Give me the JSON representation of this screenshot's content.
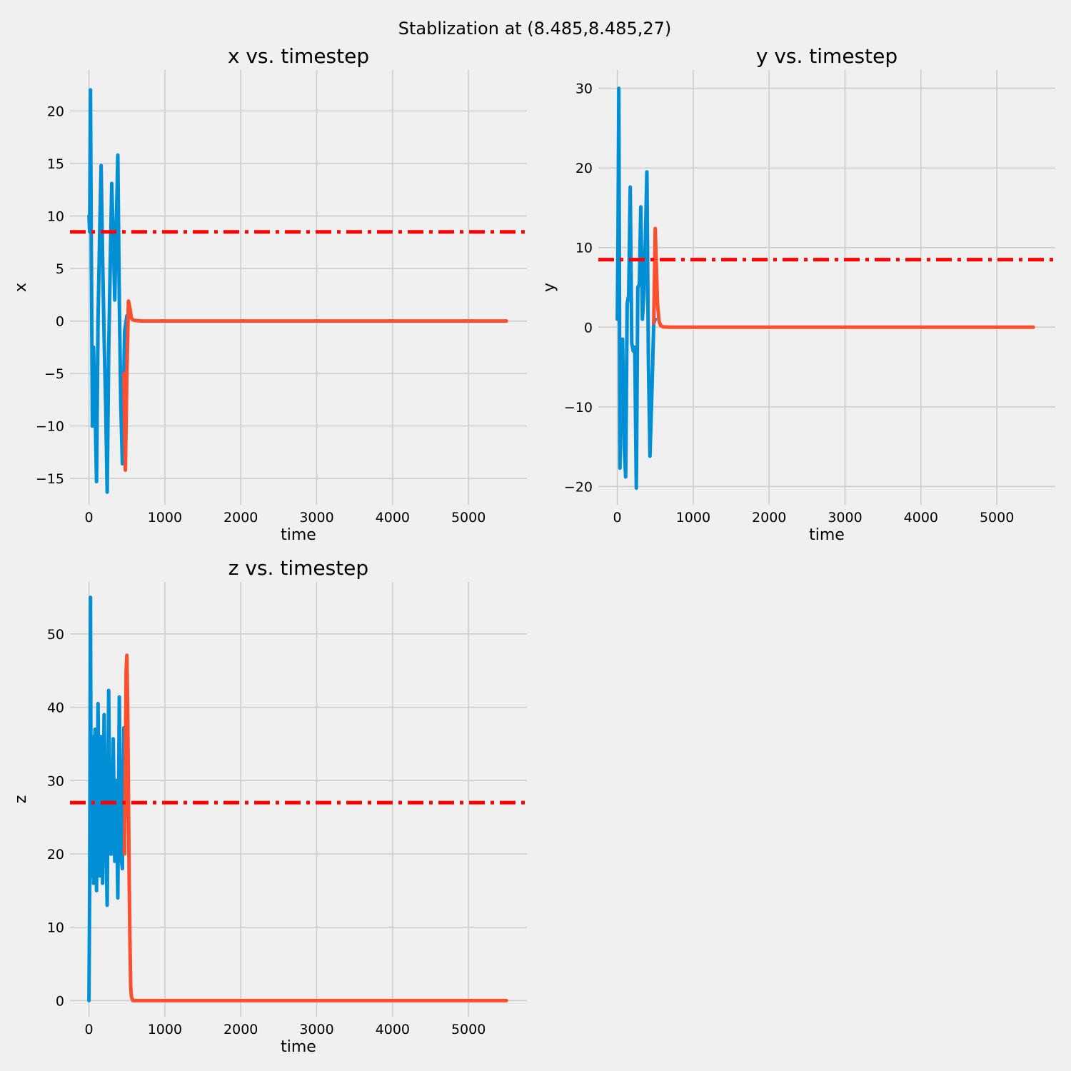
{
  "figure": {
    "suptitle": "Stablization at (8.485,8.485,27)",
    "background": "#f0f0f0",
    "grid_color": "#cbcbcb",
    "series_colors": {
      "trajectory": "#008fd5",
      "controlled": "#fc4f30",
      "target_line": "#ff0000"
    }
  },
  "chart_data": [
    {
      "type": "line",
      "title": "x vs. timestep",
      "xlabel": "time",
      "ylabel": "x",
      "xlim": [
        -250,
        5770
      ],
      "ylim": [
        -17.5,
        23.9
      ],
      "xticks": [
        0,
        1000,
        2000,
        3000,
        4000,
        5000
      ],
      "xtick_labels": [
        "0",
        "1000",
        "2000",
        "3000",
        "4000",
        "5000"
      ],
      "yticks": [
        -15,
        -10,
        -5,
        0,
        5,
        10,
        15,
        20
      ],
      "ytick_labels": [
        "−15",
        "−10",
        "−5",
        "0",
        "5",
        "10",
        "15",
        "20"
      ],
      "grid": true,
      "hline": {
        "y": 8.485,
        "style": "dash-dot"
      },
      "series": [
        {
          "role": "trajectory",
          "x": [
            0,
            10,
            20,
            30,
            45,
            60,
            80,
            100,
            120,
            140,
            160,
            180,
            200,
            220,
            240,
            260,
            280,
            300,
            320,
            340,
            360,
            380,
            400,
            420,
            440,
            460,
            470,
            480,
            500
          ],
          "y": [
            10,
            8.5,
            22,
            8,
            -10,
            -2.5,
            -8,
            -15.3,
            0,
            8,
            14.8,
            6,
            -1.5,
            -8,
            -16.3,
            -3,
            5,
            13.1,
            8,
            2,
            9,
            15.8,
            2,
            -8,
            -13.6,
            -5,
            -1,
            -0.5,
            0.5
          ]
        },
        {
          "role": "controlled",
          "x": [
            460,
            480,
            500,
            520,
            540,
            560,
            580,
            600,
            700,
            1000,
            2000,
            3000,
            4000,
            5000,
            5500
          ],
          "y": [
            -5,
            -14.2,
            -5,
            1.9,
            1.2,
            0.3,
            0.1,
            0.05,
            0,
            0,
            0,
            0,
            0,
            0,
            0
          ]
        }
      ]
    },
    {
      "type": "line",
      "title": "y vs. timestep",
      "xlabel": "time",
      "ylabel": "y",
      "xlim": [
        -250,
        5770
      ],
      "ylim": [
        -22.3,
        32.3
      ],
      "xticks": [
        0,
        1000,
        2000,
        3000,
        4000,
        5000
      ],
      "xtick_labels": [
        "0",
        "1000",
        "2000",
        "3000",
        "4000",
        "5000"
      ],
      "yticks": [
        -20,
        -10,
        0,
        10,
        20,
        30
      ],
      "ytick_labels": [
        "−20",
        "−10",
        "0",
        "10",
        "20",
        "30"
      ],
      "grid": true,
      "hline": {
        "y": 8.485,
        "style": "dash-dot"
      },
      "series": [
        {
          "role": "trajectory",
          "x": [
            0,
            10,
            20,
            35,
            50,
            70,
            90,
            110,
            130,
            150,
            170,
            190,
            210,
            230,
            250,
            270,
            290,
            310,
            330,
            350,
            370,
            390,
            410,
            430,
            450,
            465,
            480,
            500
          ],
          "y": [
            1,
            12,
            30,
            -17.7,
            -2,
            -1.5,
            -15,
            -18.8,
            3,
            4,
            17.6,
            -2,
            -3,
            -2.5,
            -20.2,
            5,
            5.4,
            15.1,
            1,
            4,
            11,
            19.5,
            -4.5,
            -16.2,
            -10,
            -5,
            0.5,
            1
          ]
        },
        {
          "role": "controlled",
          "x": [
            480,
            500,
            510,
            530,
            550,
            570,
            600,
            700,
            1000,
            2000,
            3000,
            4000,
            5000,
            5480
          ],
          "y": [
            0.5,
            12.4,
            9,
            3,
            0.8,
            0.2,
            0.05,
            0,
            0,
            0,
            0,
            0,
            0,
            0
          ]
        }
      ]
    },
    {
      "type": "line",
      "title": "z vs. timestep",
      "xlabel": "time",
      "ylabel": "z",
      "xlim": [
        -250,
        5770
      ],
      "ylim": [
        -2.2,
        57.1
      ],
      "xticks": [
        0,
        1000,
        2000,
        3000,
        4000,
        5000
      ],
      "xtick_labels": [
        "0",
        "1000",
        "2000",
        "3000",
        "4000",
        "5000"
      ],
      "yticks": [
        0,
        10,
        20,
        30,
        40,
        50
      ],
      "ytick_labels": [
        "0",
        "10",
        "20",
        "30",
        "40",
        "50"
      ],
      "grid": true,
      "hline": {
        "y": 27,
        "style": "dash-dot"
      },
      "series": [
        {
          "role": "trajectory",
          "x": [
            0,
            10,
            20,
            30,
            45,
            60,
            80,
            100,
            120,
            140,
            160,
            180,
            200,
            220,
            240,
            260,
            280,
            300,
            320,
            340,
            360,
            380,
            400,
            420,
            440,
            460,
            470,
            480
          ],
          "y": [
            0,
            15,
            55,
            17,
            36,
            16,
            37,
            15,
            40.5,
            17,
            36,
            16,
            39,
            24,
            13,
            42.3,
            20,
            20,
            35.7,
            19,
            30,
            14,
            41.4,
            20,
            18,
            37.2,
            30,
            25
          ]
        },
        {
          "role": "controlled",
          "x": [
            470,
            490,
            500,
            510,
            520,
            530,
            540,
            550,
            560,
            580,
            600,
            1000,
            2000,
            3000,
            4000,
            5000,
            5500
          ],
          "y": [
            20,
            45,
            47.1,
            40,
            28,
            17,
            8,
            2,
            0.5,
            0,
            0,
            0,
            0,
            0,
            0,
            0,
            0
          ]
        }
      ]
    }
  ]
}
